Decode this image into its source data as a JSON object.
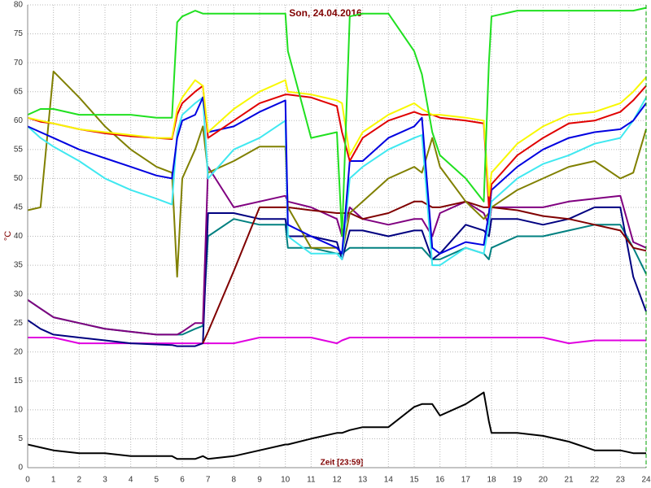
{
  "chart_data": {
    "type": "line",
    "title": "Son, 24.04.2016",
    "x_label": "Zeit [23:59]",
    "y_label": "°C",
    "xlim": [
      0,
      24
    ],
    "ylim": [
      0,
      80
    ],
    "xticks": [
      0,
      1,
      2,
      3,
      4,
      5,
      6,
      7,
      8,
      9,
      10,
      11,
      12,
      13,
      14,
      15,
      16,
      17,
      18,
      19,
      20,
      21,
      22,
      23,
      24
    ],
    "yticks": [
      0,
      5,
      10,
      15,
      20,
      25,
      30,
      35,
      40,
      45,
      50,
      55,
      60,
      65,
      70,
      75,
      80
    ],
    "grid": true,
    "x": [
      0,
      0.5,
      1,
      2,
      3,
      4,
      5,
      5.6,
      5.8,
      6,
      6.5,
      6.8,
      7,
      8,
      9,
      10,
      10.1,
      11,
      12,
      12.2,
      12.5,
      13,
      14,
      15,
      15.3,
      15.7,
      16,
      17,
      17.7,
      17.9,
      18,
      19,
      20,
      21,
      22,
      23,
      23.5,
      24
    ],
    "series": [
      {
        "color": "#000000",
        "values": [
          4,
          3.5,
          3,
          2.5,
          2.5,
          2,
          2,
          2,
          1.5,
          1.5,
          1.5,
          2,
          1.5,
          2,
          3,
          4,
          4,
          5,
          6,
          6,
          6.5,
          7,
          7,
          10.5,
          11,
          11,
          9,
          11,
          13,
          8,
          6,
          6,
          5.5,
          4.5,
          3,
          3,
          2.5,
          2.5
        ]
      },
      {
        "color": "#e000e0",
        "values": [
          22.5,
          22.5,
          22.5,
          21.5,
          21.5,
          21.5,
          21.5,
          21.5,
          21.5,
          21.5,
          21.5,
          21.5,
          21.5,
          21.5,
          22.5,
          22.5,
          22.5,
          22.5,
          21.5,
          22,
          22.5,
          22.5,
          22.5,
          22.5,
          22.5,
          22.5,
          22.5,
          22.5,
          22.5,
          22.5,
          22.5,
          22.5,
          22.5,
          21.5,
          22,
          22,
          22,
          22
        ]
      },
      {
        "color": "#008080",
        "values": [
          29,
          27.5,
          26,
          25,
          24,
          23.5,
          23,
          23,
          23,
          23,
          24,
          24.5,
          40,
          43,
          42,
          42,
          38,
          38,
          37,
          37,
          38,
          38,
          38,
          38,
          38,
          36,
          36,
          38,
          37,
          36,
          38,
          40,
          40,
          41,
          42,
          42,
          38,
          33.5
        ]
      },
      {
        "color": "#000080",
        "values": [
          25.5,
          24,
          23,
          22.5,
          22,
          21.5,
          21.3,
          21.2,
          21,
          21,
          21,
          21.5,
          44,
          44,
          43,
          43,
          40,
          40,
          39,
          36,
          41,
          41,
          40,
          41,
          41,
          36,
          37,
          42,
          41,
          40,
          43,
          43,
          42,
          43,
          45,
          45,
          33,
          27
        ]
      },
      {
        "color": "#800080",
        "values": [
          29,
          27.5,
          26,
          25,
          24,
          23.5,
          23,
          23,
          23,
          23.5,
          25,
          25,
          52,
          45,
          46,
          47,
          46,
          45,
          43,
          40,
          45,
          43,
          42,
          43,
          43,
          40,
          44,
          46,
          44,
          42,
          45,
          45,
          45,
          46,
          46.5,
          47,
          39,
          38
        ]
      },
      {
        "color": "#800000",
        "values": [
          null,
          null,
          null,
          null,
          null,
          null,
          null,
          null,
          null,
          null,
          null,
          21.5,
          23.5,
          34,
          45,
          45,
          45,
          44.5,
          44,
          44,
          44,
          43,
          44,
          46,
          46,
          45,
          45,
          46,
          45,
          45,
          45,
          44.5,
          43.5,
          43,
          42,
          41,
          38,
          37.5
        ]
      },
      {
        "color": "#808000",
        "values": [
          44.5,
          45,
          68.5,
          64,
          59,
          55,
          52,
          51,
          33,
          50,
          55,
          59,
          51,
          53,
          55.5,
          55.5,
          45,
          38,
          38,
          37,
          44,
          46,
          50,
          52,
          51,
          57,
          52,
          46,
          43,
          44,
          45,
          48,
          50,
          52,
          53,
          50,
          51,
          58.5
        ]
      },
      {
        "color": "#40e8f0",
        "values": [
          59,
          57,
          55.5,
          53,
          50,
          48,
          46.5,
          45.5,
          58,
          61,
          63,
          64,
          50,
          55,
          57,
          60,
          40,
          37,
          37,
          36,
          50,
          52,
          55,
          57,
          57.5,
          35,
          35,
          38,
          37,
          42,
          46,
          50,
          52.5,
          54,
          56,
          57,
          60,
          64
        ]
      },
      {
        "color": "#0000e0",
        "values": [
          59,
          58,
          57,
          55,
          53.5,
          52,
          50.5,
          50,
          57,
          60,
          61,
          64,
          58,
          59,
          61.5,
          63.5,
          42,
          40,
          38,
          37,
          53,
          53,
          57,
          59,
          60.5,
          38,
          37,
          39,
          38.5,
          44,
          48,
          52,
          55,
          57,
          58,
          58.5,
          60,
          63
        ]
      },
      {
        "color": "#e00000",
        "values": [
          60.5,
          59.8,
          59.5,
          58.5,
          57.8,
          57.3,
          57,
          56.8,
          61,
          63,
          65,
          66,
          57,
          60,
          63,
          64.5,
          64.5,
          64,
          62.5,
          58,
          53,
          57,
          60,
          61.5,
          61,
          61,
          60.5,
          60,
          59.5,
          45,
          49,
          54,
          57,
          59.5,
          60,
          61.5,
          63.5,
          66
        ]
      },
      {
        "color": "#f8f800",
        "values": [
          60.5,
          60,
          59.5,
          58.5,
          58,
          57.5,
          57,
          57,
          62,
          64,
          67,
          66,
          58,
          62,
          65,
          67,
          65,
          64.5,
          63.5,
          63,
          54,
          58,
          61,
          63,
          62,
          61,
          61,
          60.5,
          60,
          47,
          51,
          56,
          59,
          61,
          61.5,
          63,
          65,
          67.5
        ]
      },
      {
        "color": "#20e020",
        "values": [
          61,
          62,
          62,
          61,
          61,
          61,
          60.5,
          60.5,
          77,
          78,
          79,
          78.5,
          78.5,
          78.5,
          78.5,
          78.5,
          72,
          57,
          58,
          40,
          78,
          78.5,
          78.5,
          72,
          68,
          58,
          54,
          50,
          46,
          70,
          78,
          79,
          79,
          79,
          79,
          79,
          79,
          79.5
        ]
      }
    ]
  }
}
